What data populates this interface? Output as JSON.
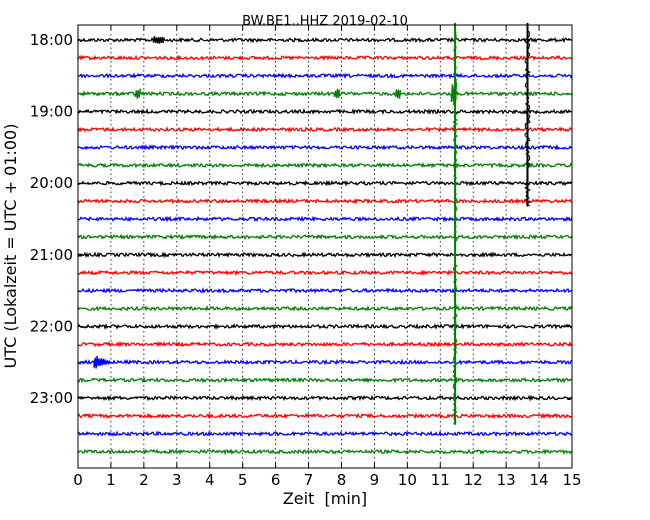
{
  "chart_data": {
    "type": "line",
    "title": "BW.BE1..HHZ 2019-02-10",
    "xlabel": "Zeit  [min]",
    "ylabel": "UTC (Lokalzeit = UTC + 01:00)",
    "xlim": [
      0,
      15
    ],
    "x_ticks": [
      "0",
      "1",
      "2",
      "3",
      "4",
      "5",
      "6",
      "7",
      "8",
      "9",
      "10",
      "11",
      "12",
      "13",
      "14",
      "15"
    ],
    "y_ticks": [
      {
        "label": "18:00",
        "offset_min": 0
      },
      {
        "label": "19:00",
        "offset_min": 60
      },
      {
        "label": "20:00",
        "offset_min": 120
      },
      {
        "label": "21:00",
        "offset_min": 180
      },
      {
        "label": "22:00",
        "offset_min": 240
      },
      {
        "label": "23:00",
        "offset_min": 300
      }
    ],
    "trace_interval_min": 15,
    "trace_colors": [
      "#000000",
      "#ff0000",
      "#0000ff",
      "#008000"
    ],
    "traces": [
      "18:00",
      "18:15",
      "18:30",
      "18:45",
      "19:00",
      "19:15",
      "19:30",
      "19:45",
      "20:00",
      "20:15",
      "20:30",
      "20:45",
      "21:00",
      "21:15",
      "21:30",
      "21:45",
      "22:00",
      "22:15",
      "22:30",
      "22:45",
      "23:00",
      "23:15",
      "23:30",
      "23:45"
    ],
    "grid": "x-dotted",
    "events": [
      {
        "trace_index": 0,
        "x_min": 2.35,
        "kind": "small-burst",
        "color": "#000000"
      },
      {
        "trace_index": 3,
        "x_min": 1.8,
        "kind": "spike",
        "color": "#008000"
      },
      {
        "trace_index": 3,
        "x_min": 7.85,
        "kind": "spike",
        "color": "#008000"
      },
      {
        "trace_index": 3,
        "x_min": 9.7,
        "kind": "spike",
        "color": "#008000"
      },
      {
        "trace_index": 3,
        "x_min": 11.4,
        "kind": "large-spike",
        "color": "#008000"
      },
      {
        "trace_index": 3,
        "x_min": 11.45,
        "kind": "vertical-line",
        "color": "#008000",
        "extent_traces": 18.5
      },
      {
        "trace_index": 0,
        "x_min": 13.65,
        "kind": "vertical-line",
        "color": "#000000",
        "extent_traces": 9.3
      },
      {
        "trace_index": 18,
        "x_min": 0.55,
        "kind": "burst",
        "color": "#0000ff"
      }
    ]
  }
}
